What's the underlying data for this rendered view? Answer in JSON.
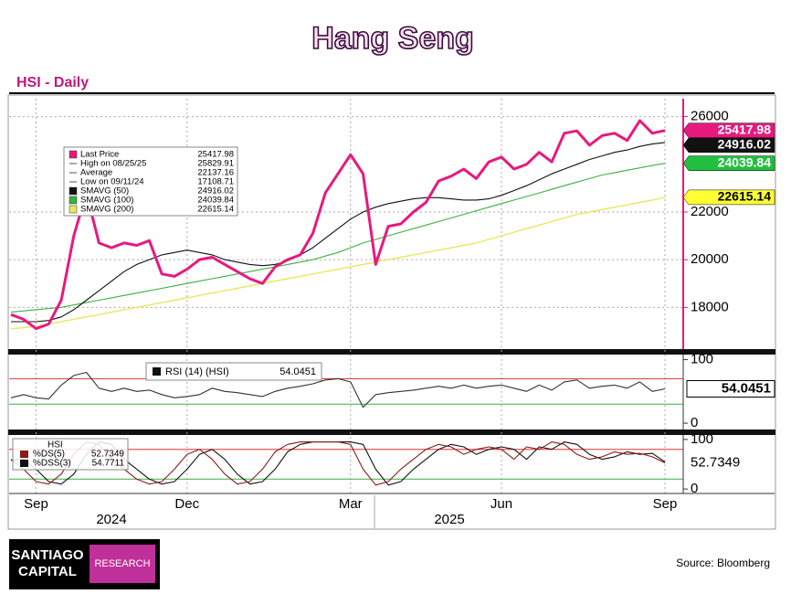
{
  "header": {
    "title": "Hang Seng"
  },
  "chart_data": [
    {
      "type": "line",
      "title": "HSI - Daily",
      "ylim": [
        16250,
        26750
      ],
      "yticks": [
        18000,
        20000,
        22000,
        26000
      ],
      "grid": true,
      "legend_corner": "top-left",
      "series": [
        {
          "color": "#e8197e",
          "values": [
            17700,
            17500,
            17108.71,
            17300,
            18300,
            21000,
            22800,
            20700,
            20500,
            20700,
            20600,
            20800,
            19400,
            19300,
            19600,
            20000,
            20100,
            19800,
            19500,
            19200,
            19000,
            19700,
            20000,
            20200,
            21100,
            22800,
            23600,
            24400,
            23600,
            19800,
            21400,
            21500,
            22000,
            22400,
            23300,
            23500,
            23800,
            23400,
            24100,
            24300,
            23800,
            24000,
            24500,
            24100,
            25300,
            25400,
            24800,
            25200,
            25300,
            25000,
            25829.91,
            25300,
            25417.98
          ]
        },
        {
          "color": "#111111",
          "values": [
            17400,
            17400,
            17400,
            17450,
            17600,
            17900,
            18300,
            18700,
            19100,
            19500,
            19800,
            20000,
            20200,
            20300,
            20400,
            20300,
            20200,
            20000,
            19900,
            19800,
            19750,
            19800,
            19950,
            20200,
            20500,
            20900,
            21300,
            21700,
            22000,
            22200,
            22350,
            22450,
            22550,
            22600,
            22600,
            22550,
            22500,
            22500,
            22550,
            22700,
            22900,
            23100,
            23350,
            23600,
            23800,
            24000,
            24200,
            24350,
            24500,
            24600,
            24750,
            24850,
            24916.02
          ]
        },
        {
          "color": "#3cb043",
          "values": [
            17800,
            17850,
            17900,
            17950,
            18000,
            18100,
            18200,
            18300,
            18400,
            18500,
            18600,
            18700,
            18800,
            18900,
            19000,
            19100,
            19200,
            19300,
            19400,
            19500,
            19600,
            19700,
            19800,
            19900,
            20000,
            20150,
            20300,
            20500,
            20700,
            20850,
            21000,
            21150,
            21300,
            21450,
            21600,
            21750,
            21900,
            22050,
            22200,
            22350,
            22500,
            22650,
            22800,
            22950,
            23100,
            23250,
            23400,
            23550,
            23650,
            23750,
            23850,
            23950,
            24039.84
          ]
        },
        {
          "color": "#e8e860",
          "values": [
            17100,
            17150,
            17200,
            17300,
            17400,
            17500,
            17600,
            17700,
            17800,
            17900,
            18000,
            18100,
            18200,
            18300,
            18400,
            18500,
            18600,
            18700,
            18800,
            18900,
            19000,
            19100,
            19200,
            19300,
            19400,
            19500,
            19600,
            19700,
            19800,
            19900,
            20000,
            20100,
            20200,
            20300,
            20400,
            20500,
            20600,
            20700,
            20850,
            21000,
            21150,
            21300,
            21450,
            21600,
            21750,
            21900,
            22000,
            22100,
            22200,
            22300,
            22400,
            22500,
            22615.14
          ]
        }
      ],
      "legend": [
        {
          "label": "Last Price",
          "value": 25417.98,
          "color": "#e8197e"
        },
        {
          "label": "High on 08/25/25",
          "value": 25829.91
        },
        {
          "label": "Average",
          "value": 22137.16
        },
        {
          "label": "Low on 09/11/24",
          "value": 17108.71
        },
        {
          "label": "SMAVG (50)",
          "value": 24916.02,
          "color": "#111111"
        },
        {
          "label": "SMAVG (100)",
          "value": 24039.84,
          "color": "#3cb043"
        },
        {
          "label": "SMAVG (200)",
          "value": 22615.14,
          "color": "#e8e860"
        }
      ]
    },
    {
      "type": "line",
      "ylim": [
        -10,
        108
      ],
      "yticks": [
        0,
        100
      ],
      "ref_lines": [
        {
          "value": 70,
          "color": "#e03030"
        },
        {
          "value": 30,
          "color": "#3cb043"
        }
      ],
      "series": [
        {
          "name": "RSI (14) (HSI)",
          "color": "#333333",
          "values": [
            40,
            45,
            40,
            38,
            60,
            75,
            80,
            55,
            50,
            55,
            50,
            52,
            45,
            40,
            42,
            45,
            55,
            50,
            48,
            45,
            42,
            50,
            55,
            58,
            62,
            68,
            70,
            65,
            25,
            45,
            48,
            50,
            52,
            55,
            58,
            55,
            60,
            55,
            58,
            60,
            55,
            50,
            60,
            52,
            65,
            68,
            55,
            58,
            60,
            55,
            65,
            50,
            54.0451
          ]
        }
      ]
    },
    {
      "type": "line",
      "ylim": [
        -9,
        109
      ],
      "yticks": [
        0,
        100
      ],
      "legend_title": "HSI",
      "ref_lines": [
        {
          "value": 80,
          "color": "#e03030"
        },
        {
          "value": 20,
          "color": "#3cb043"
        }
      ],
      "series": [
        {
          "name": "%DS(5)",
          "color": "#8b1a1a",
          "values": [
            60,
            40,
            15,
            10,
            30,
            70,
            95,
            90,
            60,
            40,
            20,
            10,
            15,
            40,
            70,
            80,
            60,
            30,
            10,
            15,
            40,
            75,
            90,
            95,
            95,
            95,
            95,
            90,
            40,
            8,
            15,
            40,
            60,
            80,
            90,
            85,
            70,
            80,
            85,
            80,
            60,
            85,
            80,
            95,
            90,
            70,
            60,
            65,
            75,
            70,
            72,
            65,
            52.7349
          ]
        },
        {
          "name": "%DSS(3)",
          "color": "#111111",
          "values": [
            58,
            60,
            40,
            15,
            10,
            30,
            70,
            95,
            90,
            60,
            40,
            20,
            10,
            15,
            40,
            70,
            80,
            60,
            30,
            10,
            15,
            40,
            75,
            90,
            95,
            95,
            95,
            95,
            90,
            40,
            8,
            15,
            40,
            60,
            80,
            90,
            85,
            70,
            80,
            85,
            80,
            60,
            85,
            80,
            95,
            90,
            70,
            60,
            65,
            75,
            70,
            72,
            54.7711
          ]
        }
      ],
      "categories": [
        null,
        null,
        "Sep",
        null,
        null,
        null,
        null,
        null,
        null,
        null,
        null,
        null,
        null,
        null,
        "Dec",
        null,
        null,
        null,
        null,
        null,
        null,
        null,
        null,
        null,
        null,
        null,
        null,
        "Mar",
        null,
        null,
        null,
        null,
        null,
        null,
        null,
        null,
        null,
        null,
        null,
        "Jun",
        null,
        null,
        null,
        null,
        null,
        null,
        null,
        null,
        null,
        null,
        null,
        null,
        "Sep"
      ],
      "group_labels": [
        "2024",
        "2025"
      ]
    }
  ],
  "footer": {
    "logo_line1": "SANTIAGO",
    "logo_line2": "CAPITAL",
    "logo_badge": "RESEARCH",
    "source": "Source: Bloomberg"
  }
}
